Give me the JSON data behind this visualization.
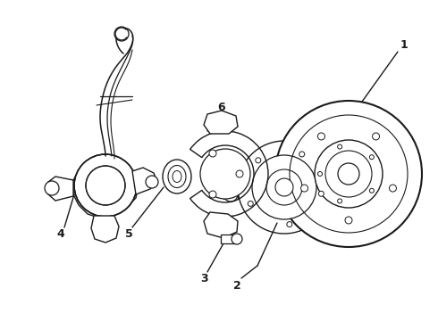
{
  "background_color": "#ffffff",
  "line_color": "#1a1a1a",
  "lw": 1.0,
  "fig_width": 4.9,
  "fig_height": 3.6,
  "dpi": 100,
  "xlim": [
    0,
    490
  ],
  "ylim": [
    0,
    360
  ]
}
